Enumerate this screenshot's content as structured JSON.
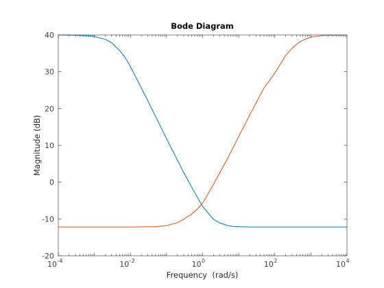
{
  "chart_data": {
    "type": "line",
    "title": "Bode Diagram",
    "xlabel": "Frequency  (rad/s)",
    "ylabel": "Magnitude (dB)",
    "x_scale": "log",
    "xlim": [
      0.0001,
      10000
    ],
    "ylim": [
      -20,
      40
    ],
    "x_ticks": [
      {
        "base": "10",
        "exp": "-4"
      },
      {
        "base": "10",
        "exp": "-2"
      },
      {
        "base": "10",
        "exp": "0"
      },
      {
        "base": "10",
        "exp": "2"
      },
      {
        "base": "10",
        "exp": "4"
      }
    ],
    "y_ticks": [
      "-20",
      "-10",
      "0",
      "10",
      "20",
      "30",
      "40"
    ],
    "grid": false,
    "series": [
      {
        "color": "#0072BD",
        "x": [
          0.0001,
          0.0003,
          0.001,
          0.002,
          0.003,
          0.005,
          0.007,
          0.01,
          0.02,
          0.03,
          0.05,
          0.1,
          0.2,
          0.3,
          0.5,
          1,
          2,
          3,
          5,
          7,
          10,
          20,
          50,
          100,
          1000,
          10000
        ],
        "y": [
          40,
          39.95,
          39.6,
          38.8,
          37.9,
          35.8,
          34,
          31.4,
          25.6,
          22.2,
          17.8,
          11.8,
          6,
          2.6,
          -1.4,
          -6.6,
          -10.1,
          -11.1,
          -11.8,
          -12,
          -12.1,
          -12.2,
          -12.2,
          -12.2,
          -12.2,
          -12.2
        ]
      },
      {
        "color": "#D95319",
        "x": [
          0.0001,
          0.001,
          0.01,
          0.05,
          0.1,
          0.2,
          0.3,
          0.5,
          0.7,
          1,
          2,
          3,
          5,
          10,
          20,
          50,
          100,
          200,
          300,
          500,
          700,
          1000,
          2000,
          10000
        ],
        "y": [
          -12.2,
          -12.2,
          -12.2,
          -12.1,
          -11.8,
          -11,
          -10.1,
          -8.6,
          -7.4,
          -5.7,
          -0.6,
          2.6,
          6.6,
          12.4,
          18.2,
          25.6,
          29.6,
          34.4,
          36.4,
          38.2,
          38.9,
          39.4,
          39.85,
          40
        ]
      }
    ]
  }
}
